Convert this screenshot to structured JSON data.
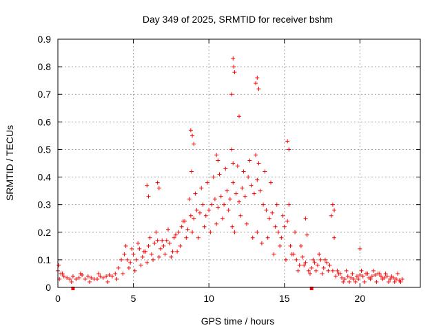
{
  "chart_data": {
    "type": "scatter",
    "title": "Day 349 of 2025, SRMTID for receiver bshm",
    "xlabel": "GPS time / hours",
    "ylabel": "SRMTID / TECUs",
    "xlim": [
      0,
      24
    ],
    "ylim": [
      0,
      0.9
    ],
    "xticks": [
      "0",
      "5",
      "10",
      "15",
      "20"
    ],
    "yticks": [
      "0",
      "0.1",
      "0.2",
      "0.3",
      "0.4",
      "0.5",
      "0.6",
      "0.7",
      "0.8",
      "0.9"
    ],
    "grid": true,
    "marker": "+",
    "color": "#ff0000",
    "series": [
      {
        "name": "SRMTID",
        "x": [
          0.0,
          0.2,
          0.4,
          0.6,
          0.8,
          1.0,
          1.2,
          1.4,
          1.6,
          1.8,
          2.0,
          2.2,
          2.4,
          2.6,
          2.8,
          3.0,
          3.2,
          3.4,
          3.6,
          3.8,
          4.0,
          4.2,
          4.4,
          4.6,
          4.8,
          5.0,
          5.2,
          5.4,
          5.6,
          5.8,
          6.0,
          6.2,
          6.4,
          6.6,
          6.8,
          7.0,
          7.2,
          7.4,
          7.6,
          7.8,
          8.0,
          8.2,
          8.4,
          8.6,
          8.8,
          9.0,
          9.2,
          9.4,
          9.6,
          9.8,
          10.0,
          10.2,
          10.4,
          10.6,
          10.8,
          11.0,
          11.2,
          11.4,
          11.6,
          11.8,
          12.0,
          12.2,
          12.4,
          12.6,
          12.8,
          13.0,
          13.2,
          13.4,
          13.6,
          13.8,
          14.0,
          14.2,
          14.4,
          14.6,
          14.8,
          15.0,
          15.2,
          15.4,
          15.6,
          15.8,
          16.0,
          16.2,
          16.4,
          16.6,
          16.8,
          17.0,
          17.2,
          17.4,
          17.6,
          17.8,
          18.0,
          18.2,
          18.4,
          18.6,
          18.8,
          19.0,
          19.2,
          19.4,
          19.6,
          19.8,
          20.0,
          20.2,
          20.4,
          20.6,
          20.8,
          21.0,
          21.2,
          21.4,
          21.6,
          21.8,
          22.0,
          22.2,
          22.4,
          22.6,
          22.8,
          0.05,
          0.1,
          0.3,
          0.9,
          1.5,
          2.1,
          2.7,
          3.3,
          3.9,
          4.3,
          4.5,
          4.7,
          4.9,
          5.1,
          5.3,
          5.5,
          5.7,
          5.9,
          6.1,
          6.3,
          6.5,
          6.7,
          6.9,
          7.1,
          7.3,
          7.5,
          7.7,
          7.9,
          8.1,
          8.3,
          8.5,
          8.7,
          8.85,
          8.9,
          9.1,
          9.3,
          9.5,
          9.7,
          9.9,
          10.1,
          10.3,
          10.5,
          10.7,
          10.9,
          11.1,
          11.3,
          11.5,
          11.55,
          11.6,
          11.7,
          11.9,
          12.1,
          12.3,
          12.5,
          12.7,
          12.9,
          13.1,
          13.2,
          13.3,
          13.5,
          13.7,
          13.9,
          14.1,
          14.3,
          14.5,
          14.7,
          14.9,
          15.1,
          15.3,
          15.5,
          15.7,
          15.9,
          16.1,
          16.3,
          16.5,
          16.7,
          16.9,
          17.1,
          17.3,
          17.5,
          17.7,
          17.9,
          18.1,
          18.3,
          18.5,
          18.7,
          18.9,
          19.1,
          19.3,
          19.5,
          19.7,
          19.9,
          20.1,
          20.3,
          20.5,
          20.7,
          20.9,
          21.1,
          21.3,
          21.5,
          21.7,
          21.9,
          22.1,
          22.3,
          22.5,
          22.7,
          5.9,
          6.0,
          6.6,
          6.7,
          8.8,
          8.9,
          9.0,
          10.5,
          10.6,
          11.5,
          11.6,
          11.65,
          11.7,
          12.0,
          13.1,
          13.2,
          13.3,
          15.2,
          15.3,
          16.4,
          18.2,
          18.3,
          20.0
        ],
        "y": [
          0.06,
          0.05,
          0.04,
          0.035,
          0.03,
          0.04,
          0.03,
          0.035,
          0.045,
          0.03,
          0.04,
          0.035,
          0.03,
          0.03,
          0.04,
          0.035,
          0.04,
          0.045,
          0.04,
          0.05,
          0.07,
          0.1,
          0.12,
          0.1,
          0.09,
          0.12,
          0.1,
          0.14,
          0.11,
          0.13,
          0.15,
          0.12,
          0.16,
          0.17,
          0.14,
          0.15,
          0.17,
          0.16,
          0.13,
          0.19,
          0.2,
          0.22,
          0.24,
          0.21,
          0.26,
          0.25,
          0.28,
          0.27,
          0.3,
          0.26,
          0.28,
          0.3,
          0.32,
          0.29,
          0.33,
          0.3,
          0.35,
          0.32,
          0.38,
          0.34,
          0.31,
          0.36,
          0.33,
          0.4,
          0.37,
          0.34,
          0.39,
          0.35,
          0.3,
          0.28,
          0.25,
          0.27,
          0.22,
          0.2,
          0.18,
          0.22,
          0.24,
          0.15,
          0.12,
          0.1,
          0.08,
          0.11,
          0.09,
          0.06,
          0.07,
          0.09,
          0.08,
          0.1,
          0.07,
          0.09,
          0.08,
          0.06,
          0.04,
          0.05,
          0.035,
          0.03,
          0.04,
          0.035,
          0.03,
          0.04,
          0.045,
          0.04,
          0.05,
          0.035,
          0.04,
          0.045,
          0.05,
          0.04,
          0.035,
          0.04,
          0.03,
          0.035,
          0.03,
          0.025,
          0.03,
          0.08,
          0.03,
          0.05,
          0.02,
          0.05,
          0.02,
          0.05,
          0.02,
          0.03,
          0.05,
          0.15,
          0.07,
          0.14,
          0.06,
          0.16,
          0.08,
          0.13,
          0.09,
          0.18,
          0.1,
          0.2,
          0.11,
          0.17,
          0.12,
          0.21,
          0.11,
          0.18,
          0.13,
          0.15,
          0.24,
          0.18,
          0.32,
          0.42,
          0.2,
          0.34,
          0.18,
          0.36,
          0.22,
          0.38,
          0.2,
          0.4,
          0.23,
          0.41,
          0.25,
          0.43,
          0.28,
          0.5,
          0.22,
          0.45,
          0.2,
          0.44,
          0.26,
          0.42,
          0.23,
          0.46,
          0.18,
          0.48,
          0.2,
          0.45,
          0.16,
          0.42,
          0.18,
          0.38,
          0.12,
          0.3,
          0.15,
          0.26,
          0.1,
          0.3,
          0.12,
          0.2,
          0.06,
          0.15,
          0.08,
          0.19,
          0.05,
          0.1,
          0.06,
          0.12,
          0.05,
          0.1,
          0.06,
          0.26,
          0.18,
          0.06,
          0.05,
          0.02,
          0.06,
          0.02,
          0.05,
          0.02,
          0.03,
          0.06,
          0.02,
          0.05,
          0.03,
          0.06,
          0.02,
          0.05,
          0.03,
          0.05,
          0.02,
          0.04,
          0.02,
          0.05,
          0.02,
          0.37,
          0.33,
          0.38,
          0.36,
          0.57,
          0.55,
          0.52,
          0.48,
          0.46,
          0.7,
          0.83,
          0.8,
          0.78,
          0.62,
          0.74,
          0.76,
          0.72,
          0.53,
          0.5,
          0.25,
          0.3,
          0.28,
          0.14
        ]
      }
    ],
    "special_points": [
      {
        "x": 1.0,
        "y": 0.0
      },
      {
        "x": 16.8,
        "y": 0.0
      }
    ]
  }
}
